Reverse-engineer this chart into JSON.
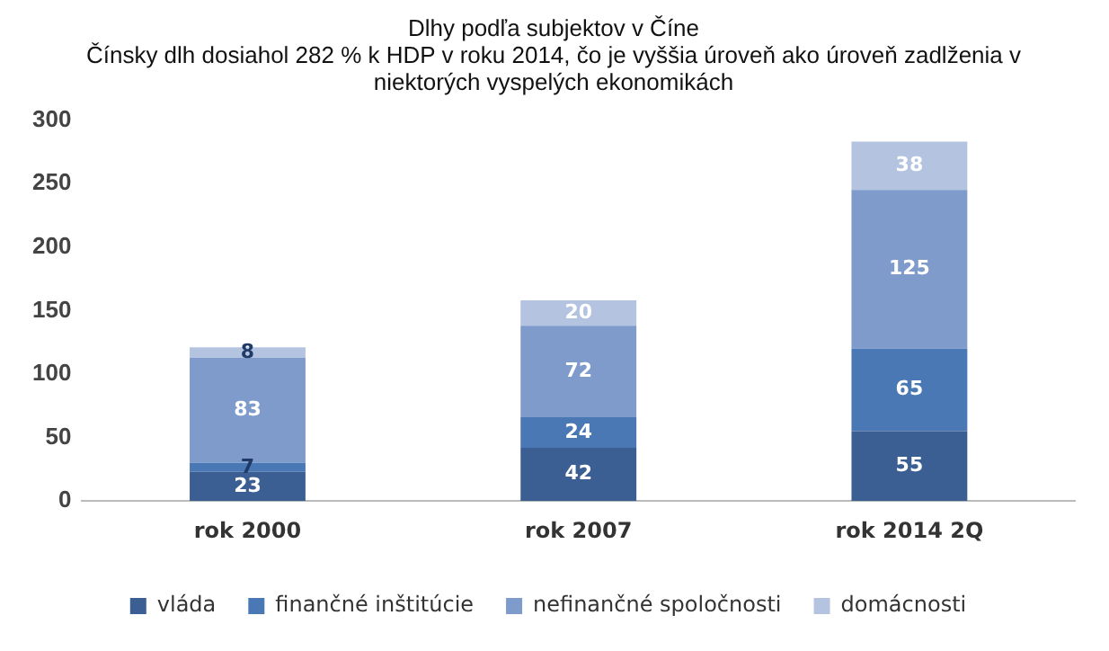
{
  "chart_data": {
    "type": "bar",
    "title": "Dlhy podľa subjektov v Číne",
    "subtitle": "Čínsky dlh dosiahol 282 % k HDP v roku 2014, čo je vyššia úroveň ako úroveň zadlženia v niektorých vyspelých ekonomikách",
    "categories": [
      "rok 2000",
      "rok 2007",
      "rok 2014 2Q"
    ],
    "stacked": true,
    "series": [
      {
        "name": "vláda",
        "color": "#3c5f93",
        "values": [
          23,
          42,
          55
        ]
      },
      {
        "name": "finančné inštitúcie",
        "color": "#4a78b4",
        "values": [
          7,
          24,
          65
        ]
      },
      {
        "name": "nefinančné spoločnosti",
        "color": "#7e9bcb",
        "values": [
          83,
          72,
          125
        ]
      },
      {
        "name": "domácnosti",
        "color": "#b4c4e0",
        "values": [
          8,
          20,
          38
        ]
      }
    ],
    "ylim": [
      0,
      300
    ],
    "yticks": [
      0,
      50,
      100,
      150,
      200,
      250,
      300
    ],
    "grid": false,
    "legend": "bottom",
    "data_labels": true
  }
}
